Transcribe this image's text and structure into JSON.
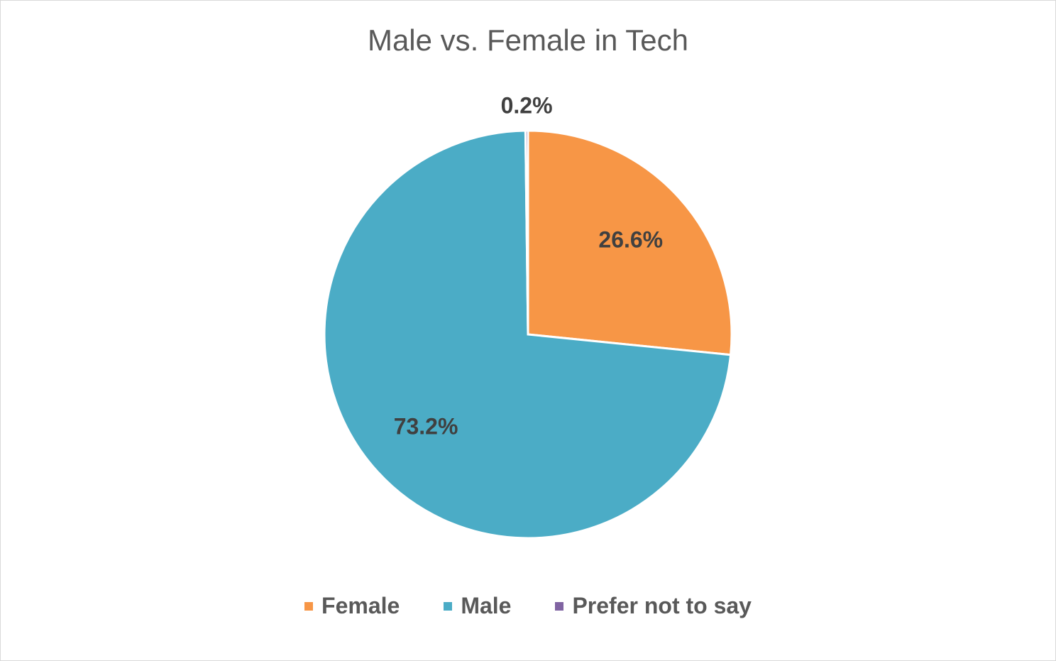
{
  "chart_data": {
    "type": "pie",
    "title": "Male vs. Female in Tech",
    "categories": [
      "Female",
      "Male",
      "Prefer not to say"
    ],
    "values": [
      26.6,
      73.2,
      0.2
    ],
    "data_labels": [
      "26.6%",
      "73.2%",
      "0.2%"
    ],
    "colors": [
      "#F79646",
      "#4BACC6",
      "#8064A2"
    ],
    "legend_position": "bottom"
  }
}
